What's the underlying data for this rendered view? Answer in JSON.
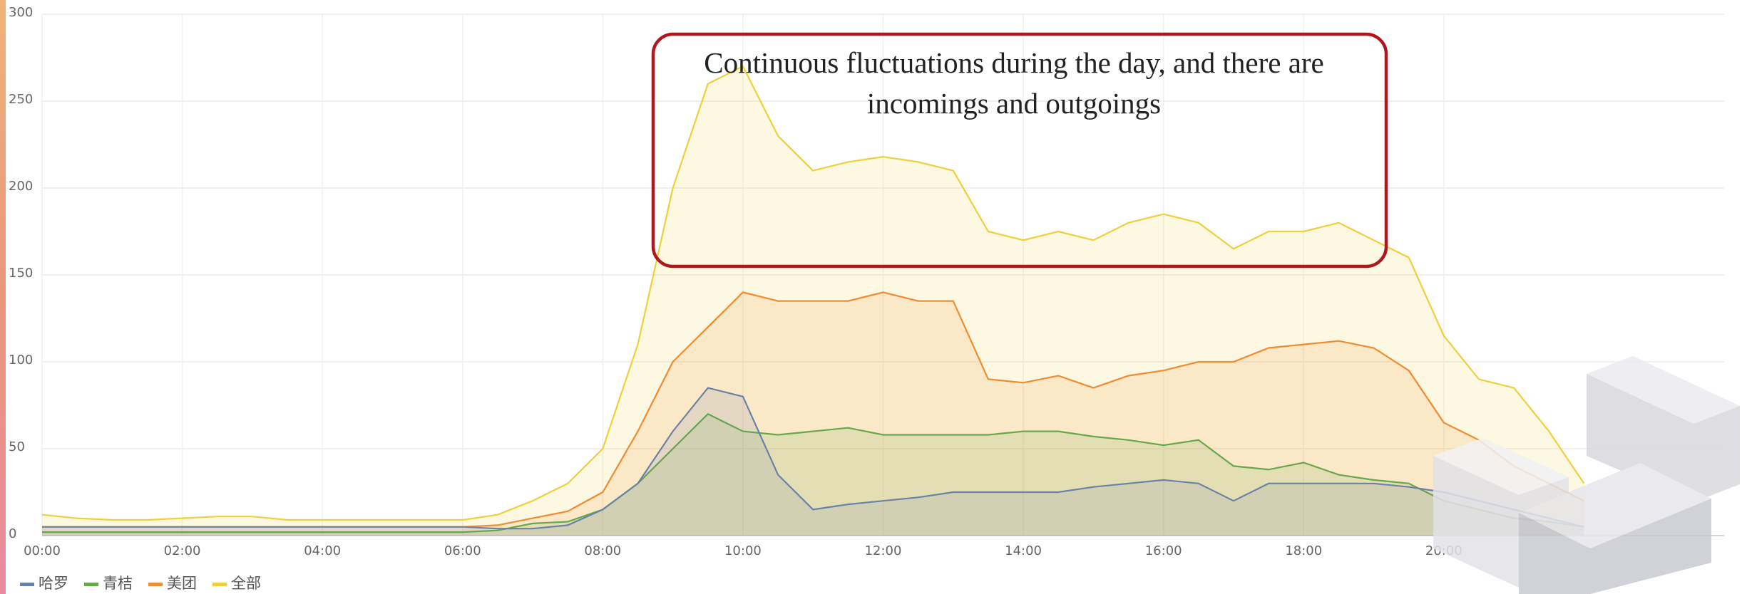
{
  "chart_data": {
    "type": "area-line",
    "annotation": "Continuous fluctuations during the day, and there are incomings and outgoings",
    "x": [
      0,
      0.5,
      1,
      1.5,
      2,
      2.5,
      3,
      3.5,
      4,
      4.5,
      5,
      5.5,
      6,
      6.5,
      7,
      7.5,
      8,
      8.5,
      9,
      9.5,
      10,
      10.5,
      11,
      11.5,
      12,
      12.5,
      13,
      13.5,
      14,
      14.5,
      15,
      15.5,
      16,
      16.5,
      17,
      17.5,
      18,
      18.5,
      19,
      19.5,
      20,
      20.5,
      21,
      21.5,
      22
    ],
    "series": [
      {
        "name": "全部",
        "color": "#f0cf3a",
        "values": [
          12,
          10,
          9,
          9,
          10,
          11,
          11,
          9,
          9,
          9,
          9,
          9,
          9,
          12,
          20,
          30,
          50,
          110,
          200,
          260,
          270,
          230,
          210,
          215,
          218,
          215,
          210,
          175,
          170,
          175,
          170,
          180,
          185,
          180,
          165,
          175,
          175,
          180,
          170,
          160,
          115,
          90,
          85,
          60,
          30
        ]
      },
      {
        "name": "美团",
        "color": "#ef8c32",
        "values": [
          5,
          5,
          5,
          5,
          5,
          5,
          5,
          5,
          5,
          5,
          5,
          5,
          5,
          6,
          10,
          14,
          25,
          60,
          100,
          120,
          140,
          135,
          135,
          135,
          140,
          135,
          135,
          90,
          88,
          92,
          85,
          92,
          95,
          100,
          100,
          108,
          110,
          112,
          108,
          95,
          65,
          55,
          40,
          30,
          20
        ]
      },
      {
        "name": "青桔",
        "color": "#66a84a",
        "values": [
          2,
          2,
          2,
          2,
          2,
          2,
          2,
          2,
          2,
          2,
          2,
          2,
          2,
          3,
          7,
          8,
          15,
          30,
          50,
          70,
          60,
          58,
          60,
          62,
          58,
          58,
          58,
          58,
          60,
          60,
          57,
          55,
          52,
          55,
          40,
          38,
          42,
          35,
          32,
          30,
          20,
          15,
          10,
          8,
          5
        ]
      },
      {
        "name": "哈罗",
        "color": "#6a82a8",
        "values": [
          5,
          5,
          5,
          5,
          5,
          5,
          5,
          5,
          5,
          5,
          5,
          5,
          5,
          4,
          4,
          6,
          15,
          30,
          60,
          85,
          80,
          35,
          15,
          18,
          20,
          22,
          25,
          25,
          25,
          25,
          28,
          30,
          32,
          30,
          20,
          30,
          30,
          30,
          30,
          28,
          25,
          20,
          15,
          10,
          5
        ]
      }
    ],
    "xlim": [
      0,
      24
    ],
    "xticks": [
      {
        "value": 0,
        "label": "00:00"
      },
      {
        "value": 2,
        "label": "02:00"
      },
      {
        "value": 4,
        "label": "04:00"
      },
      {
        "value": 6,
        "label": "06:00"
      },
      {
        "value": 8,
        "label": "08:00"
      },
      {
        "value": 10,
        "label": "10:00"
      },
      {
        "value": 12,
        "label": "12:00"
      },
      {
        "value": 14,
        "label": "14:00"
      },
      {
        "value": 16,
        "label": "16:00"
      },
      {
        "value": 18,
        "label": "18:00"
      },
      {
        "value": 20,
        "label": "20:00"
      }
    ],
    "ylim": [
      0,
      300
    ],
    "yticks": [
      0,
      50,
      100,
      150,
      200,
      250,
      300
    ],
    "grid": true,
    "legend": "bottom-left"
  }
}
